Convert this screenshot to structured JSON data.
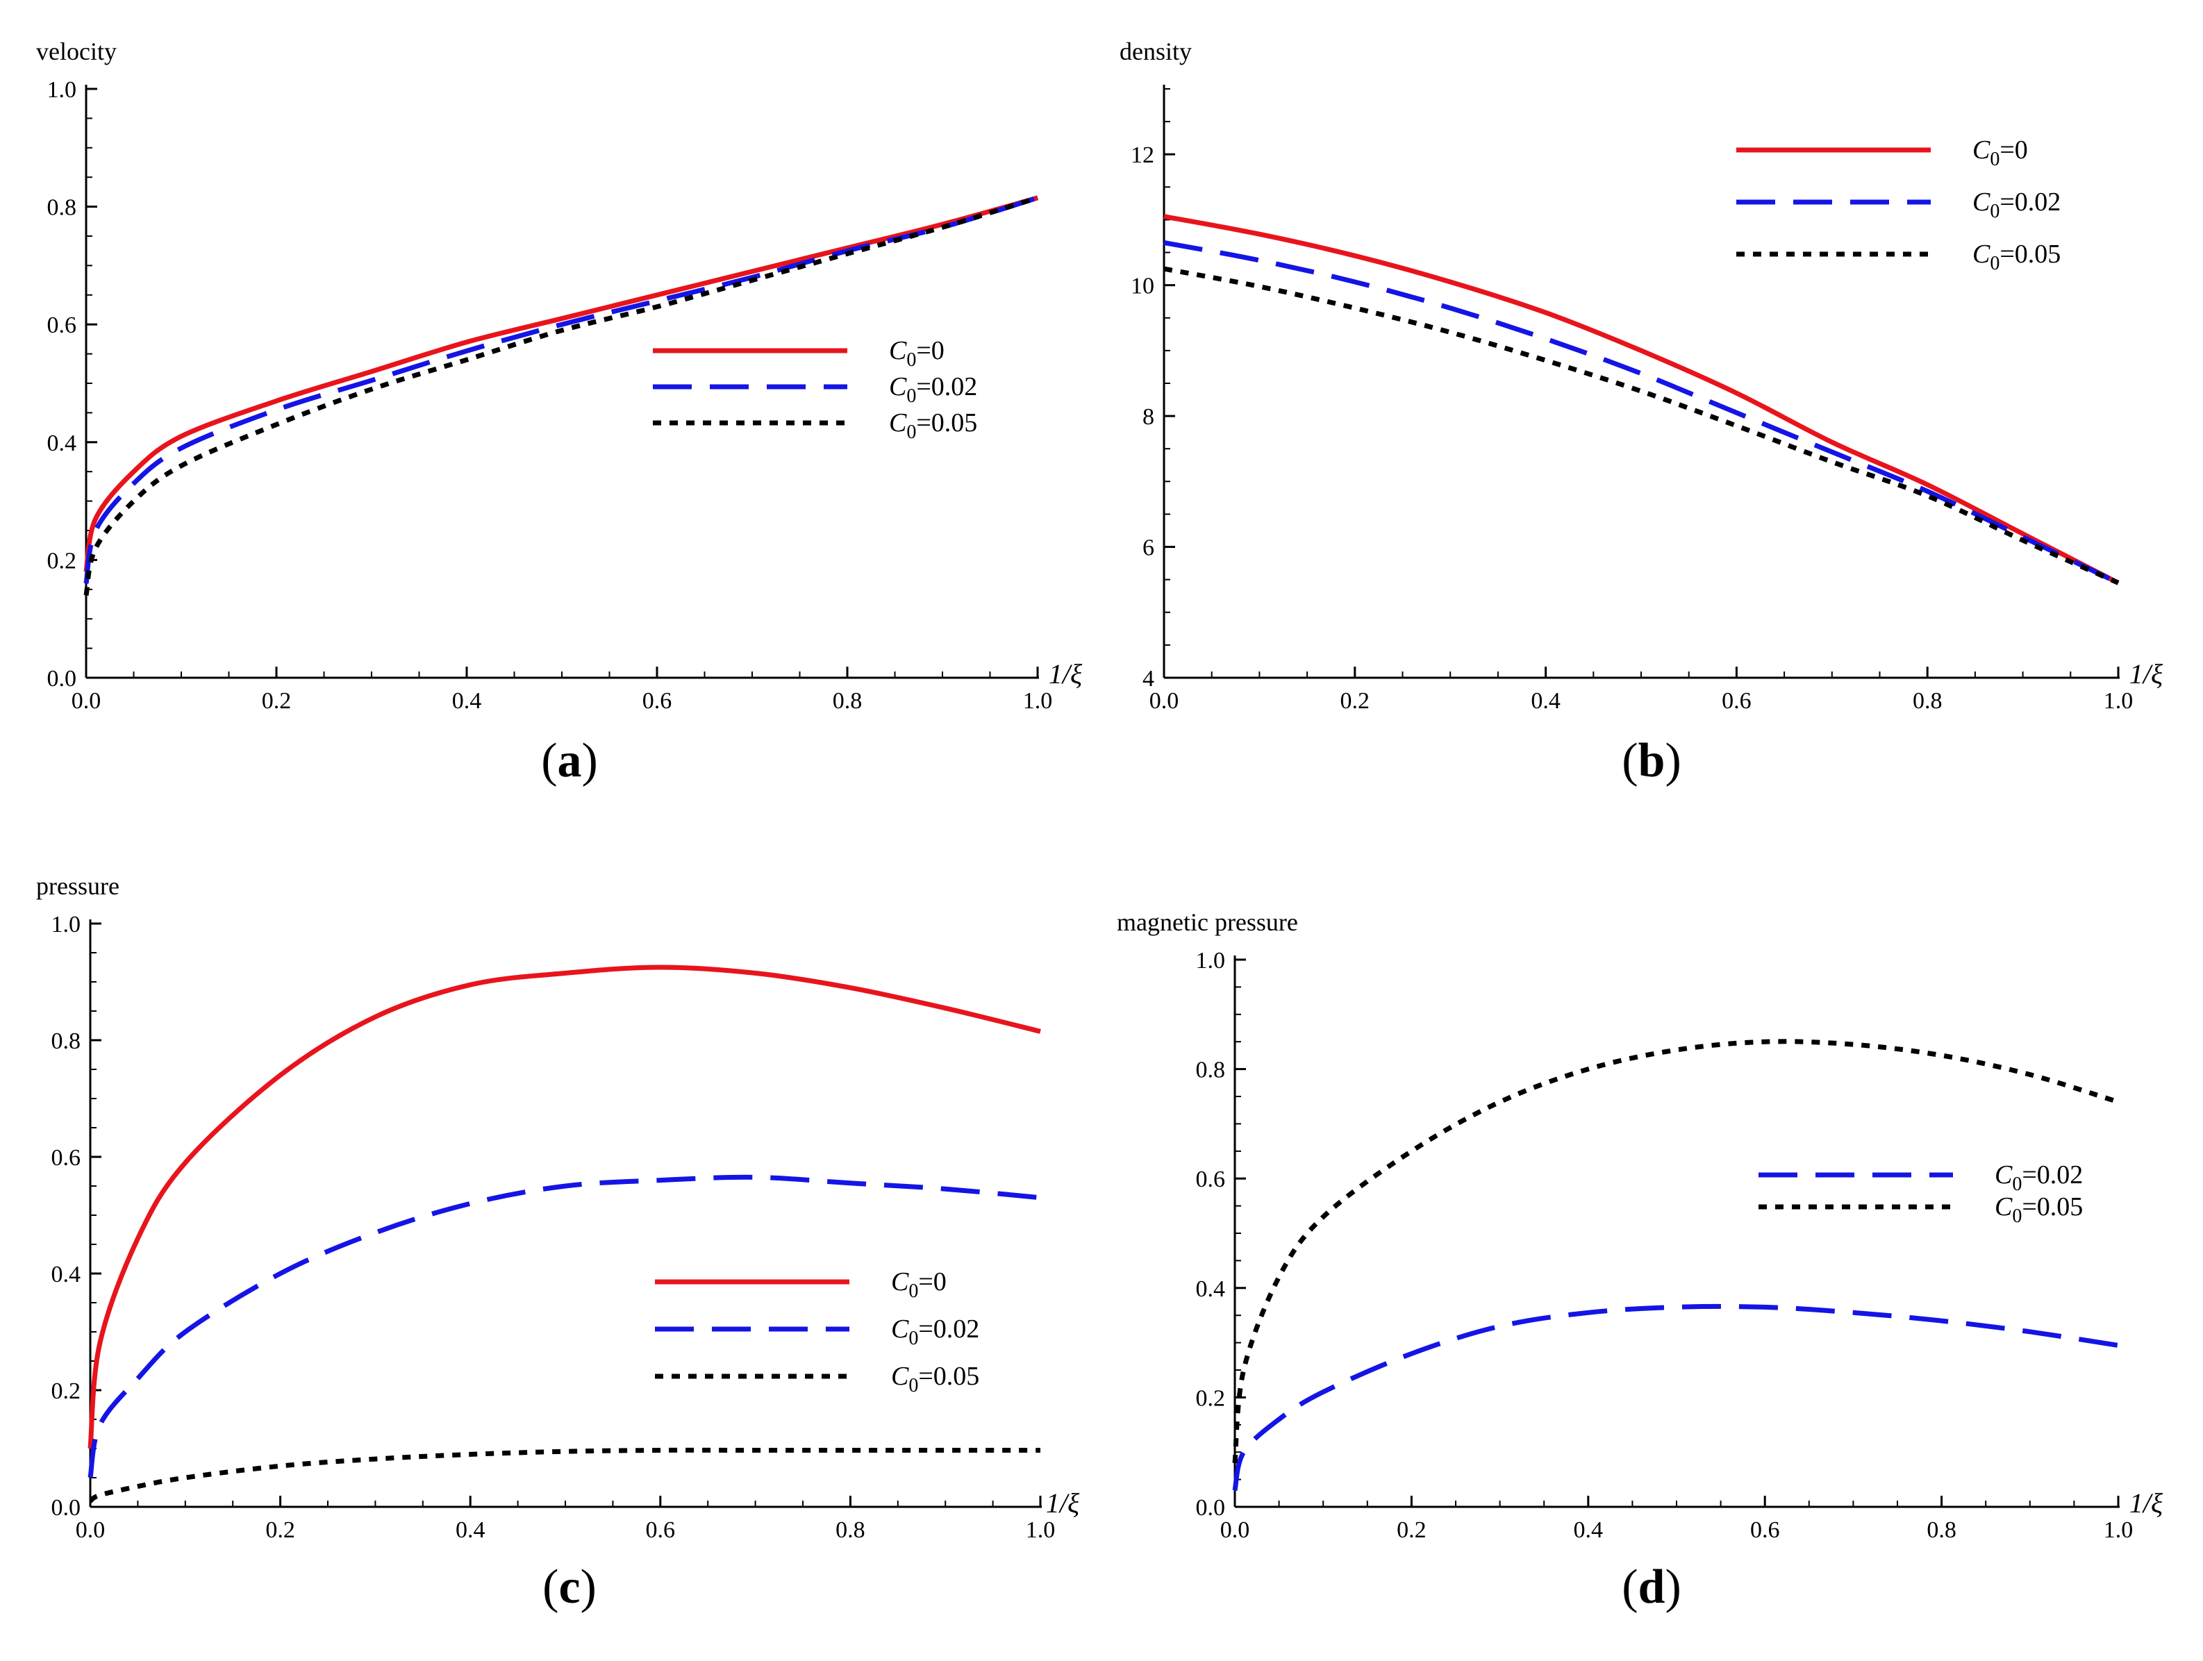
{
  "figure": {
    "panel_labels": [
      "(a)",
      "(b)",
      "(c)",
      "(d)"
    ]
  },
  "styles": {
    "C0=0": {
      "color": "#e8141c",
      "dash": "solid"
    },
    "C0=0.02": {
      "color": "#1414e6",
      "dash": "dashed"
    },
    "C0=0.05": {
      "color": "#000000",
      "dash": "dotted"
    }
  },
  "chart_data": [
    {
      "type": "line",
      "panel": "(a)",
      "title": "",
      "ylabel": "velocity",
      "xlabel": "1/ξ",
      "xlim": [
        0,
        1
      ],
      "ylim": [
        0,
        1
      ],
      "xticks": [
        "0.0",
        "0.2",
        "0.4",
        "0.6",
        "0.8",
        "1.0"
      ],
      "yticks": [
        "0.0",
        "0.2",
        "0.4",
        "0.6",
        "0.8",
        "1.0"
      ],
      "legend_position": "center-right",
      "x": [
        0,
        0.01,
        0.05,
        0.1,
        0.2,
        0.3,
        0.4,
        0.5,
        0.6,
        0.7,
        0.8,
        0.9,
        1.0
      ],
      "series": [
        {
          "name": "C0=0",
          "label_main": "C",
          "label_sub": "0",
          "label_rest": "=0",
          "values": [
            0.18,
            0.27,
            0.35,
            0.41,
            0.47,
            0.52,
            0.57,
            0.61,
            0.65,
            0.69,
            0.73,
            0.77,
            0.815
          ]
        },
        {
          "name": "C0=0.02",
          "label_main": "C",
          "label_sub": "0",
          "label_rest": "=0.02",
          "values": [
            0.16,
            0.25,
            0.33,
            0.39,
            0.455,
            0.505,
            0.555,
            0.6,
            0.64,
            0.68,
            0.725,
            0.765,
            0.815
          ]
        },
        {
          "name": "C0=0.05",
          "label_main": "C",
          "label_sub": "0",
          "label_rest": "=0.05",
          "values": [
            0.14,
            0.22,
            0.3,
            0.36,
            0.43,
            0.49,
            0.54,
            0.59,
            0.63,
            0.675,
            0.72,
            0.765,
            0.815
          ]
        }
      ]
    },
    {
      "type": "line",
      "panel": "(b)",
      "title": "",
      "ylabel": "density",
      "xlabel": "1/ξ",
      "xlim": [
        0,
        1
      ],
      "ylim": [
        4,
        13
      ],
      "xticks": [
        "0.0",
        "0.2",
        "0.4",
        "0.6",
        "0.8",
        "1.0"
      ],
      "yticks": [
        "4",
        "6",
        "8",
        "10",
        "12"
      ],
      "ytick_values": [
        4,
        6,
        8,
        10,
        12
      ],
      "legend_position": "top-right",
      "x": [
        0,
        0.1,
        0.2,
        0.3,
        0.4,
        0.5,
        0.6,
        0.7,
        0.8,
        0.9,
        1.0
      ],
      "series": [
        {
          "name": "C0=0",
          "label_main": "C",
          "label_sub": "0",
          "label_rest": "=0",
          "values": [
            11.05,
            10.78,
            10.45,
            10.05,
            9.58,
            9.0,
            8.35,
            7.6,
            6.95,
            6.2,
            5.45
          ]
        },
        {
          "name": "C0=0.02",
          "label_main": "C",
          "label_sub": "0",
          "label_rest": "=0.02",
          "values": [
            10.65,
            10.38,
            10.05,
            9.65,
            9.18,
            8.65,
            8.05,
            7.45,
            6.85,
            6.15,
            5.45
          ]
        },
        {
          "name": "C0=0.05",
          "label_main": "C",
          "label_sub": "0",
          "label_rest": "=0.05",
          "values": [
            10.25,
            9.98,
            9.65,
            9.28,
            8.85,
            8.38,
            7.85,
            7.3,
            6.78,
            6.1,
            5.45
          ]
        }
      ]
    },
    {
      "type": "line",
      "panel": "(c)",
      "title": "",
      "ylabel": "pressure",
      "xlabel": "1/ξ",
      "xlim": [
        0,
        1
      ],
      "ylim": [
        0,
        1
      ],
      "xticks": [
        "0.0",
        "0.2",
        "0.4",
        "0.6",
        "0.8",
        "1.0"
      ],
      "yticks": [
        "0.0",
        "0.2",
        "0.4",
        "0.6",
        "0.8",
        "1.0"
      ],
      "legend_position": "lower-right",
      "x": [
        0,
        0.01,
        0.05,
        0.1,
        0.2,
        0.3,
        0.4,
        0.5,
        0.6,
        0.7,
        0.8,
        0.9,
        1.0
      ],
      "series": [
        {
          "name": "C0=0",
          "label_main": "C",
          "label_sub": "0",
          "label_rest": "=0",
          "values": [
            0.1,
            0.28,
            0.46,
            0.59,
            0.74,
            0.84,
            0.895,
            0.915,
            0.925,
            0.915,
            0.89,
            0.855,
            0.815
          ]
        },
        {
          "name": "C0=0.02",
          "label_main": "C",
          "label_sub": "0",
          "label_rest": "=0.02",
          "values": [
            0.05,
            0.14,
            0.22,
            0.3,
            0.4,
            0.47,
            0.52,
            0.55,
            0.56,
            0.565,
            0.555,
            0.545,
            0.53
          ]
        },
        {
          "name": "C0=0.05",
          "label_main": "C",
          "label_sub": "0",
          "label_rest": "=0.05",
          "values": [
            0.01,
            0.02,
            0.035,
            0.05,
            0.07,
            0.082,
            0.09,
            0.095,
            0.097,
            0.097,
            0.097,
            0.097,
            0.097
          ]
        }
      ]
    },
    {
      "type": "line",
      "panel": "(d)",
      "title": "",
      "ylabel": "magnetic pressure",
      "xlabel": "1/ξ",
      "xlim": [
        0,
        1
      ],
      "ylim": [
        0,
        1
      ],
      "xticks": [
        "0.0",
        "0.2",
        "0.4",
        "0.6",
        "0.8",
        "1.0"
      ],
      "yticks": [
        "0.0",
        "0.2",
        "0.4",
        "0.6",
        "0.8",
        "1.0"
      ],
      "legend_position": "center-right",
      "x": [
        0,
        0.01,
        0.05,
        0.1,
        0.2,
        0.3,
        0.4,
        0.5,
        0.6,
        0.7,
        0.8,
        0.9,
        1.0
      ],
      "series": [
        {
          "name": "C0=0.02",
          "label_main": "C",
          "label_sub": "0",
          "label_rest": "=0.02",
          "values": [
            0.03,
            0.1,
            0.16,
            0.21,
            0.28,
            0.33,
            0.355,
            0.365,
            0.365,
            0.355,
            0.34,
            0.32,
            0.295
          ]
        },
        {
          "name": "C0=0.05",
          "label_main": "C",
          "label_sub": "0",
          "label_rest": "=0.05",
          "values": [
            0.08,
            0.25,
            0.42,
            0.53,
            0.65,
            0.74,
            0.8,
            0.835,
            0.85,
            0.845,
            0.825,
            0.79,
            0.74
          ]
        }
      ]
    }
  ]
}
